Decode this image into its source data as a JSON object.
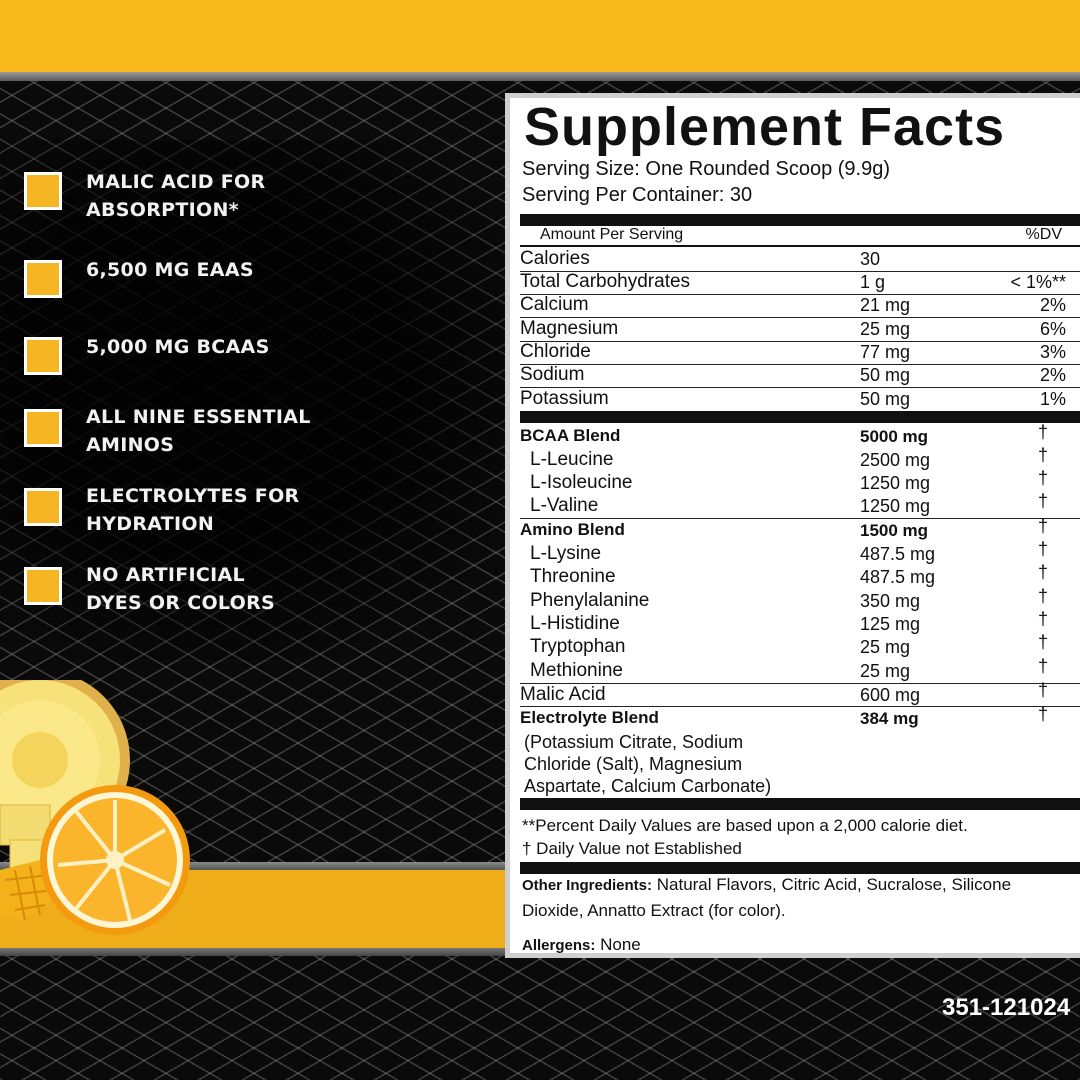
{
  "colors": {
    "accent": "#f8b91c",
    "panel": "#ffffff",
    "background": "#0b0b0b"
  },
  "features": [
    {
      "icon": "checkbox-icon",
      "line1": "MALIC ACID FOR",
      "line2": "ABSORPTION*"
    },
    {
      "icon": "checkbox-icon",
      "line1": "6,500 MG EAAS",
      "line2": ""
    },
    {
      "icon": "checkbox-icon",
      "line1": "5,000 MG BCAAS",
      "line2": ""
    },
    {
      "icon": "checkbox-icon",
      "line1": "ALL NINE ESSENTIAL",
      "line2": "AMINOS"
    },
    {
      "icon": "checkbox-icon",
      "line1": "ELECTROLYTES FOR",
      "line2": "HYDRATION"
    },
    {
      "icon": "checkbox-icon",
      "line1": "NO ARTIFICIAL",
      "line2": "DYES OR COLORS"
    }
  ],
  "facts": {
    "title": "Supplement Facts",
    "serving_size": "Serving Size: One Rounded Scoop (9.9g)",
    "servings_per_container": "Serving Per Container: 30",
    "amount_per_serving": "Amount Per Serving",
    "dv_header": "%DV",
    "nutrients": [
      {
        "name": "Calories",
        "amount": "30",
        "dv": ""
      },
      {
        "name": "Total Carbohydrates",
        "amount": "1 g",
        "dv": "< 1%**"
      },
      {
        "name": "Calcium",
        "amount": "21 mg",
        "dv": "2%"
      },
      {
        "name": "Magnesium",
        "amount": "25 mg",
        "dv": "6%"
      },
      {
        "name": "Chloride",
        "amount": "77 mg",
        "dv": "3%"
      },
      {
        "name": "Sodium",
        "amount": "50 mg",
        "dv": "2%"
      },
      {
        "name": "Potassium",
        "amount": "50 mg",
        "dv": "1%"
      }
    ],
    "bcaa": {
      "name": "BCAA Blend",
      "amount": "5000 mg",
      "dv": "†",
      "items": [
        {
          "name": "L-Leucine",
          "amount": "2500 mg",
          "dv": "†"
        },
        {
          "name": "L-Isoleucine",
          "amount": "1250 mg",
          "dv": "†"
        },
        {
          "name": "L-Valine",
          "amount": "1250 mg",
          "dv": "†"
        }
      ]
    },
    "amino": {
      "name": "Amino Blend",
      "amount": "1500 mg",
      "dv": "†",
      "items": [
        {
          "name": "L-Lysine",
          "amount": "487.5 mg",
          "dv": "†"
        },
        {
          "name": "Threonine",
          "amount": "487.5 mg",
          "dv": "†"
        },
        {
          "name": "Phenylalanine",
          "amount": "350 mg",
          "dv": "†"
        },
        {
          "name": "L-Histidine",
          "amount": "125 mg",
          "dv": "†"
        },
        {
          "name": "Tryptophan",
          "amount": "25 mg",
          "dv": "†"
        },
        {
          "name": "Methionine",
          "amount": "25 mg",
          "dv": "†"
        }
      ]
    },
    "malic": {
      "name": "Malic Acid",
      "amount": "600 mg",
      "dv": "†"
    },
    "electrolyte": {
      "name": "Electrolyte Blend",
      "amount": "384 mg",
      "dv": "†",
      "note_lines": [
        "(Potassium Citrate, Sodium",
        "Chloride (Salt), Magnesium",
        "Aspartate, Calcium Carbonate)"
      ]
    },
    "footnote1": "**Percent Daily Values are based upon a 2,000 calorie diet.",
    "footnote2": "† Daily Value not Established",
    "other_label": "Other Ingredients:",
    "other_text": " Natural Flavors, Citric Acid, Sucralose, Silicone Dioxide, Annatto Extract (for color).",
    "allergens_label": "Allergens:",
    "allergens_text": " None"
  },
  "product_code": "351-121024"
}
